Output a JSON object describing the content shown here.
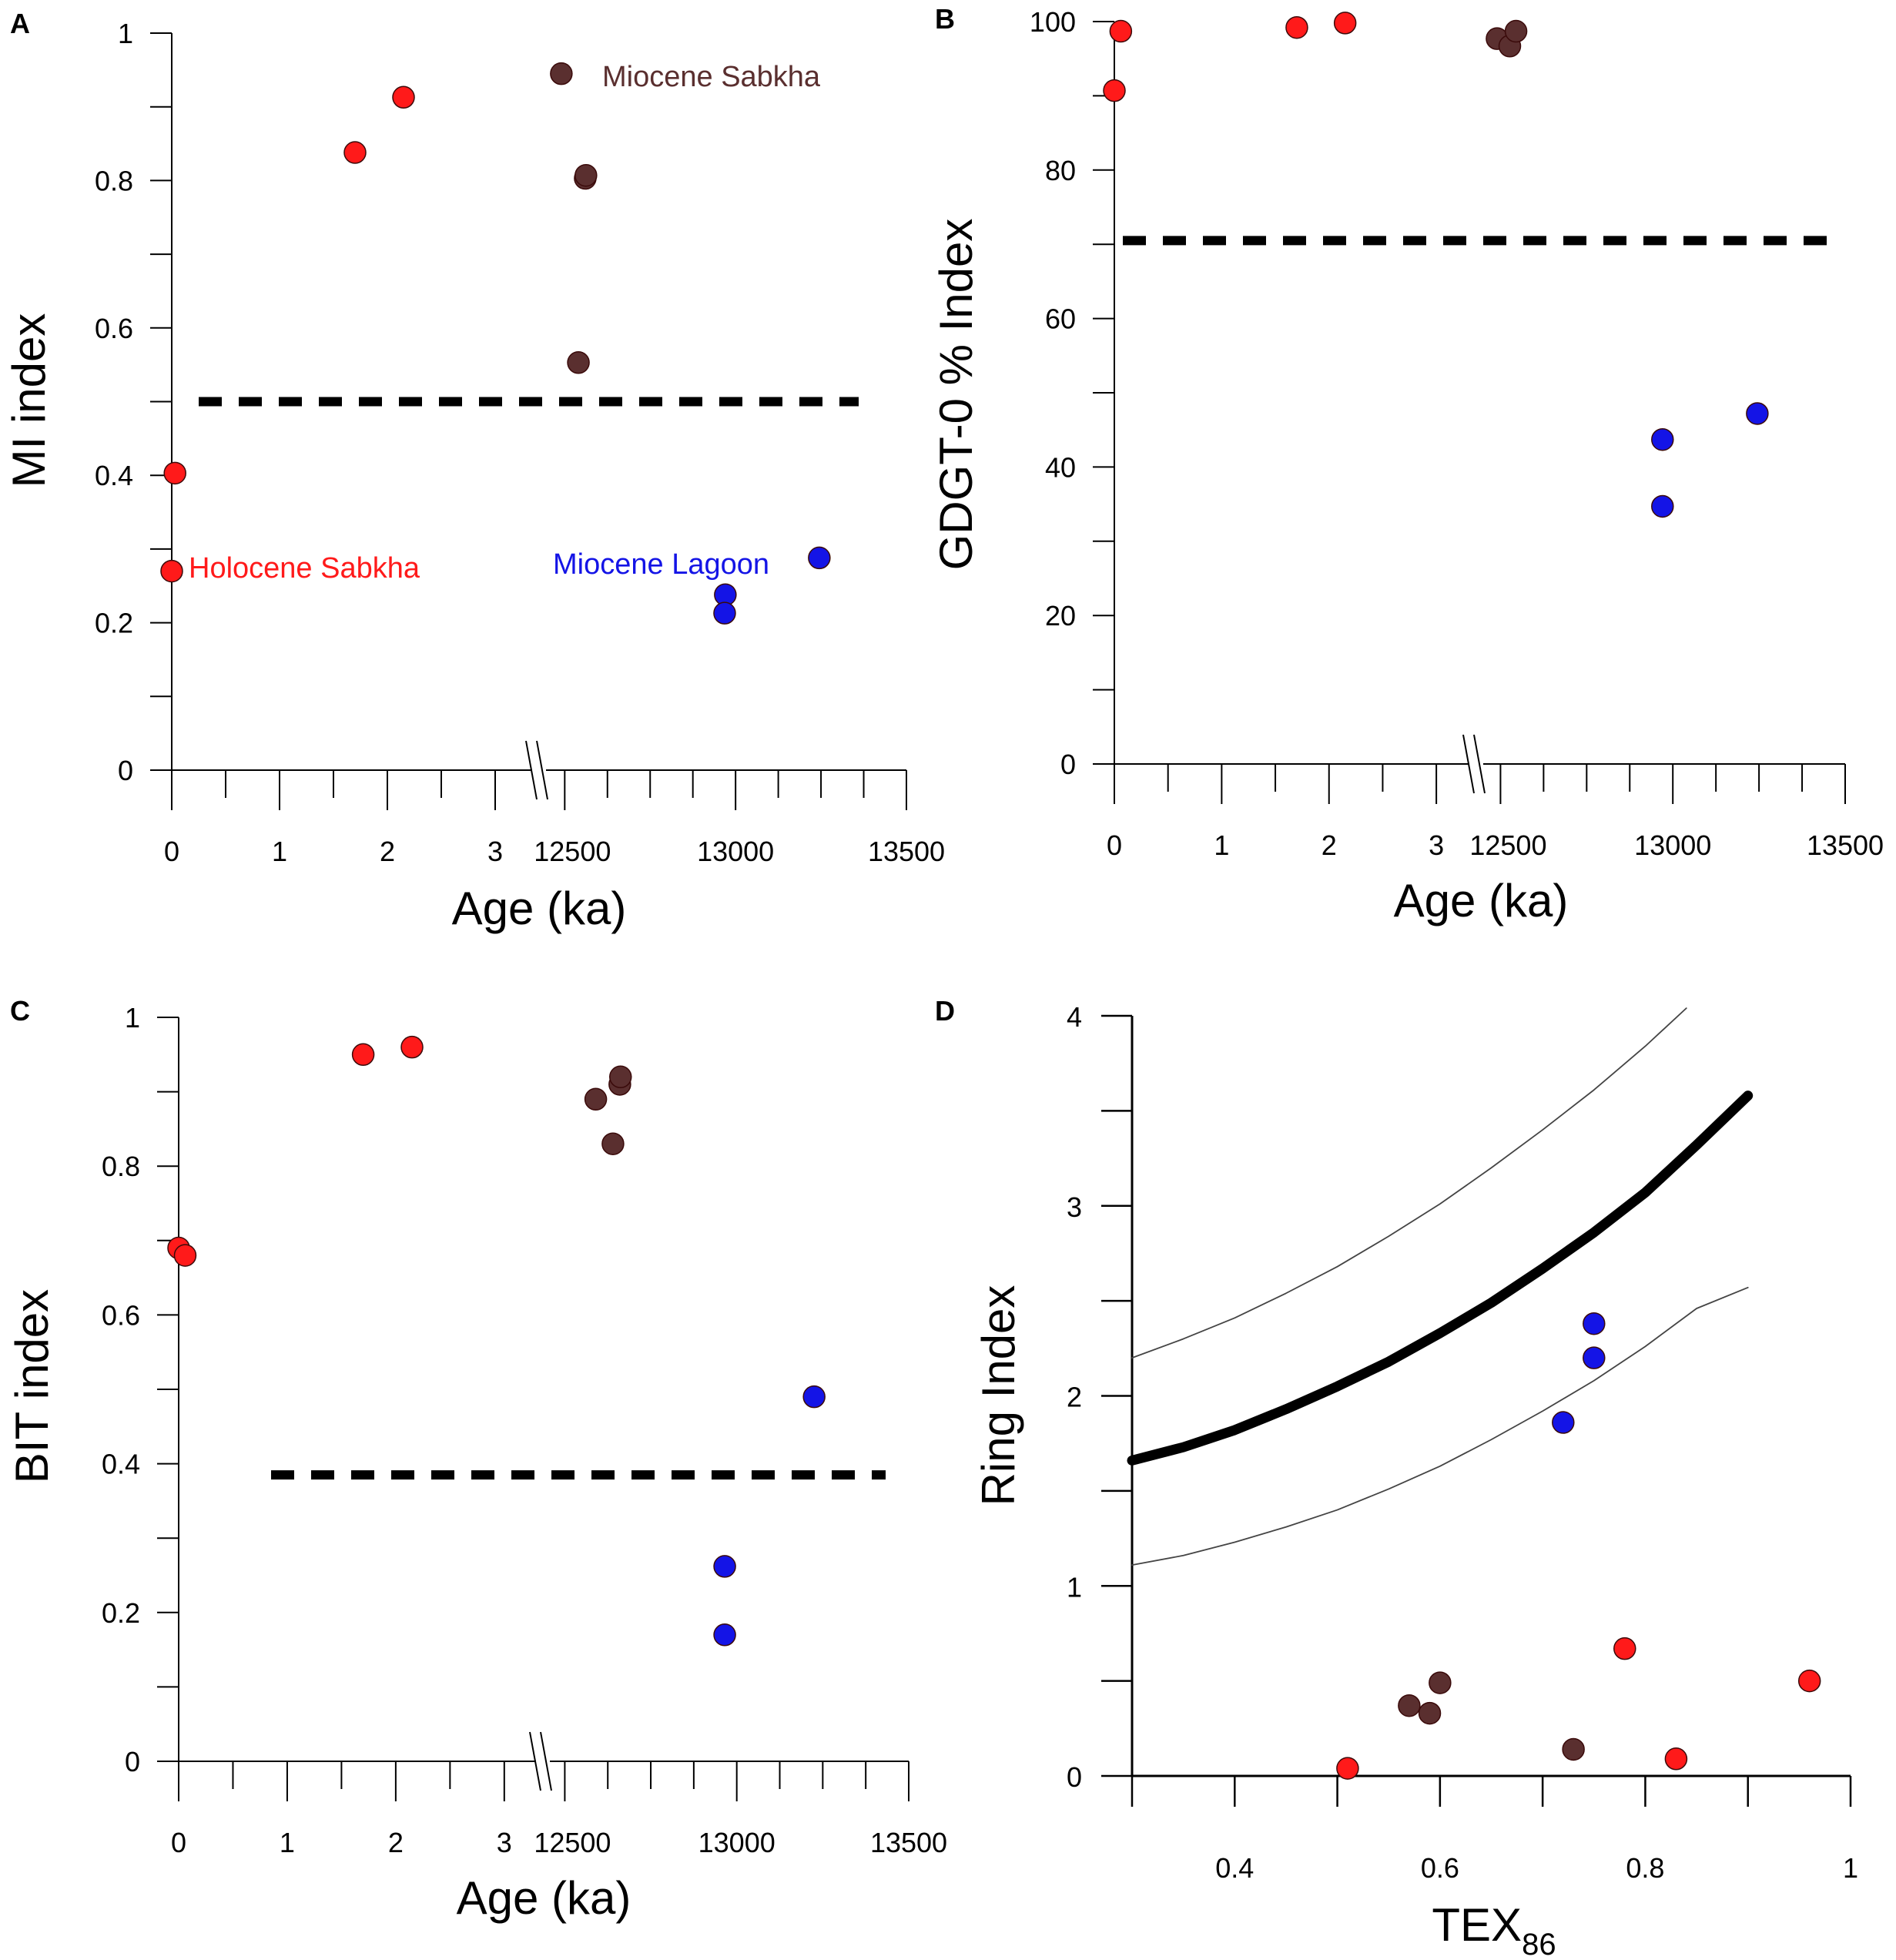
{
  "colors": {
    "holocene": "#ff1a1a",
    "miocene_sabkha": "#5a2f2f",
    "miocene_lagoon": "#1414e6",
    "axis": "#000000",
    "background": "#ffffff"
  },
  "chart_data": [
    {
      "id": "A",
      "type": "scatter",
      "panel_letter": "A",
      "xlabel": "Age (ka)",
      "ylabel": "MI index",
      "ylim": [
        0,
        1
      ],
      "y_ticks": [
        "0",
        "0.2",
        "0.4",
        "0.6",
        "0.8",
        "1"
      ],
      "x_ticks_low": [
        "0",
        "1",
        "2",
        "3"
      ],
      "x_ticks_high": [
        "12500",
        "13000",
        "13500"
      ],
      "x_break": true,
      "threshold": 0.5,
      "annotations": [
        {
          "text": "Holocene Sabkha",
          "group": "holocene"
        },
        {
          "text": "Miocene Sabkha",
          "group": "miocene_sabkha"
        },
        {
          "text": "Miocene Lagoon",
          "group": "miocene_lagoon"
        }
      ],
      "series": [
        {
          "name": "Holocene Sabkha",
          "group": "holocene",
          "points": [
            {
              "age": 0.0,
              "y": 0.27
            },
            {
              "age": 0.03,
              "y": 0.403
            },
            {
              "age": 1.7,
              "y": 0.838
            },
            {
              "age": 2.15,
              "y": 0.913
            }
          ]
        },
        {
          "name": "Miocene Sabkha",
          "group": "miocene_sabkha",
          "points": [
            {
              "age": 12490,
              "y": 0.945
            },
            {
              "age": 12540,
              "y": 0.553
            },
            {
              "age": 12560,
              "y": 0.803
            },
            {
              "age": 12562,
              "y": 0.807
            }
          ]
        },
        {
          "name": "Miocene Lagoon",
          "group": "miocene_lagoon",
          "points": [
            {
              "age": 12970,
              "y": 0.238
            },
            {
              "age": 12968,
              "y": 0.213
            },
            {
              "age": 13245,
              "y": 0.288
            }
          ]
        }
      ]
    },
    {
      "id": "B",
      "type": "scatter",
      "panel_letter": "B",
      "xlabel": "Age (ka)",
      "ylabel": "GDGT-0 % Index",
      "ylim": [
        0,
        100
      ],
      "y_ticks": [
        "0",
        "20",
        "40",
        "60",
        "80",
        "100"
      ],
      "x_ticks_low": [
        "0",
        "1",
        "2",
        "3"
      ],
      "x_ticks_high": [
        "12500",
        "13000",
        "13500"
      ],
      "x_break": true,
      "threshold": 70.5,
      "annotations": [],
      "series": [
        {
          "name": "Holocene Sabkha",
          "group": "holocene",
          "points": [
            {
              "age": 0.0,
              "y": 90.7
            },
            {
              "age": 0.06,
              "y": 98.7
            },
            {
              "age": 1.7,
              "y": 99.2
            },
            {
              "age": 2.15,
              "y": 99.8
            }
          ]
        },
        {
          "name": "Miocene Sabkha",
          "group": "miocene_sabkha",
          "points": [
            {
              "age": 12490,
              "y": 97.7
            },
            {
              "age": 12527,
              "y": 96.7
            },
            {
              "age": 12545,
              "y": 98.7
            }
          ]
        },
        {
          "name": "Miocene Lagoon",
          "group": "miocene_lagoon",
          "points": [
            {
              "age": 12970,
              "y": 43.7
            },
            {
              "age": 12970,
              "y": 34.7
            },
            {
              "age": 13245,
              "y": 47.2
            }
          ]
        }
      ]
    },
    {
      "id": "C",
      "type": "scatter",
      "panel_letter": "C",
      "xlabel": "Age (ka)",
      "ylabel": "BIT index",
      "ylim": [
        0,
        1
      ],
      "y_ticks": [
        "0",
        "0.2",
        "0.4",
        "0.6",
        "0.8",
        "1"
      ],
      "x_ticks_low": [
        "0",
        "1",
        "2",
        "3"
      ],
      "x_ticks_high": [
        "12500",
        "13000",
        "13500"
      ],
      "x_break": true,
      "threshold": 0.385,
      "annotations": [],
      "series": [
        {
          "name": "Holocene Sabkha",
          "group": "holocene",
          "points": [
            {
              "age": 0.0,
              "y": 0.69
            },
            {
              "age": 0.06,
              "y": 0.68
            },
            {
              "age": 1.7,
              "y": 0.95
            },
            {
              "age": 2.15,
              "y": 0.96
            }
          ]
        },
        {
          "name": "Miocene Sabkha",
          "group": "miocene_sabkha",
          "points": [
            {
              "age": 12590,
              "y": 0.89
            },
            {
              "age": 12640,
              "y": 0.83
            },
            {
              "age": 12660,
              "y": 0.91
            },
            {
              "age": 12662,
              "y": 0.92
            }
          ]
        },
        {
          "name": "Miocene Lagoon",
          "group": "miocene_lagoon",
          "points": [
            {
              "age": 12965,
              "y": 0.262
            },
            {
              "age": 12965,
              "y": 0.17
            },
            {
              "age": 13225,
              "y": 0.49
            }
          ]
        }
      ]
    },
    {
      "id": "D",
      "type": "scatter",
      "panel_letter": "D",
      "xlabel": "TEX",
      "xlabel_sub": "86",
      "ylabel": "Ring Index",
      "xlim": [
        0.3,
        1.0
      ],
      "ylim": [
        0,
        4
      ],
      "x_ticks": [
        "0.4",
        "0.6",
        "0.8",
        "1"
      ],
      "x_tick_values": [
        0.4,
        0.6,
        0.8,
        1.0
      ],
      "y_ticks": [
        "0",
        "1",
        "2",
        "3",
        "4"
      ],
      "curves": [
        {
          "name": "ring-index-fit",
          "style": "thick",
          "x": [
            0.3,
            0.35,
            0.4,
            0.45,
            0.5,
            0.55,
            0.6,
            0.65,
            0.7,
            0.75,
            0.8,
            0.85,
            0.9
          ],
          "y": [
            1.66,
            1.73,
            1.82,
            1.93,
            2.05,
            2.18,
            2.33,
            2.49,
            2.67,
            2.86,
            3.07,
            3.32,
            3.58
          ]
        },
        {
          "name": "upper-bound",
          "style": "thin",
          "x": [
            0.3,
            0.35,
            0.4,
            0.45,
            0.5,
            0.55,
            0.6,
            0.65,
            0.7,
            0.75,
            0.8,
            0.84
          ],
          "y": [
            2.2,
            2.3,
            2.41,
            2.54,
            2.68,
            2.84,
            3.01,
            3.2,
            3.4,
            3.61,
            3.84,
            4.04
          ]
        },
        {
          "name": "lower-bound",
          "style": "thin",
          "x": [
            0.3,
            0.35,
            0.4,
            0.45,
            0.5,
            0.55,
            0.6,
            0.65,
            0.7,
            0.75,
            0.8,
            0.85,
            0.9
          ],
          "y": [
            1.11,
            1.16,
            1.23,
            1.31,
            1.4,
            1.51,
            1.63,
            1.77,
            1.92,
            2.08,
            2.26,
            2.46,
            2.57
          ]
        }
      ],
      "series": [
        {
          "name": "Holocene Sabkha",
          "group": "holocene",
          "points": [
            {
              "x": 0.51,
              "y": 0.04
            },
            {
              "x": 0.78,
              "y": 0.67
            },
            {
              "x": 0.83,
              "y": 0.09
            },
            {
              "x": 0.96,
              "y": 0.5
            }
          ]
        },
        {
          "name": "Miocene Sabkha",
          "group": "miocene_sabkha",
          "points": [
            {
              "x": 0.57,
              "y": 0.37
            },
            {
              "x": 0.59,
              "y": 0.33
            },
            {
              "x": 0.6,
              "y": 0.49
            },
            {
              "x": 0.73,
              "y": 0.14
            }
          ]
        },
        {
          "name": "Miocene Lagoon",
          "group": "miocene_lagoon",
          "points": [
            {
              "x": 0.72,
              "y": 1.86
            },
            {
              "x": 0.75,
              "y": 2.38
            },
            {
              "x": 0.75,
              "y": 2.2
            }
          ]
        }
      ]
    }
  ]
}
